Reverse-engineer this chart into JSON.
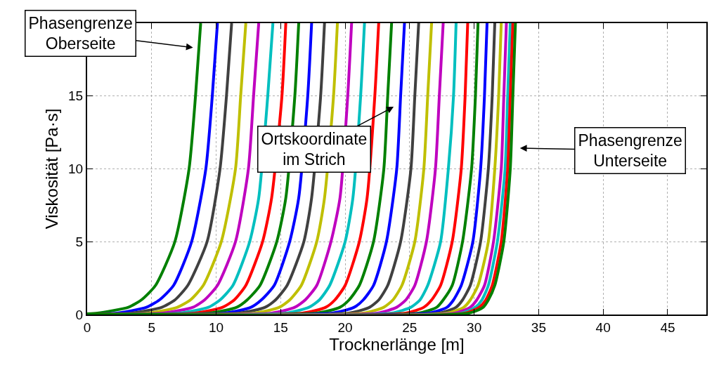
{
  "chart_data": {
    "type": "line",
    "xlabel": "Trocknerlänge [m]",
    "ylabel": "Viskosität [Pa·s]",
    "xlim": [
      0,
      48
    ],
    "xticks": [
      0,
      5,
      10,
      15,
      20,
      25,
      30,
      35,
      40,
      45
    ],
    "ylim": [
      0,
      20
    ],
    "yticks": [
      0,
      5,
      10,
      15
    ],
    "grid": true,
    "line_style": "solid",
    "annotations": [
      "Phasengrenze\nOberseite",
      "Ortskoordinate\nim Strich",
      "Phasengrenze\nUnterseite"
    ],
    "series": [
      {
        "color": "#008000",
        "x": [
          0,
          0.8,
          3.2,
          4.2,
          5.3,
          6.8,
          7.9,
          8.4,
          8.8
        ],
        "values": [
          0.05,
          0.1,
          0.5,
          1,
          2,
          5,
          10,
          15,
          20
        ]
      },
      {
        "color": "#0000ff",
        "x": [
          0,
          2.3,
          4.6,
          5.6,
          6.7,
          8.1,
          9.2,
          9.7,
          10.1
        ],
        "values": [
          0.05,
          0.1,
          0.5,
          1,
          2,
          5,
          10,
          15,
          20
        ]
      },
      {
        "color": "#404040",
        "x": [
          0,
          3.5,
          5.8,
          6.8,
          7.8,
          9.3,
          10.3,
          10.8,
          11.2
        ],
        "values": [
          0.05,
          0.1,
          0.5,
          1,
          2,
          5,
          10,
          15,
          20
        ]
      },
      {
        "color": "#bfbf00",
        "x": [
          0,
          4.8,
          7.0,
          8.0,
          9.0,
          10.4,
          11.5,
          11.9,
          12.3
        ],
        "values": [
          0.05,
          0.1,
          0.5,
          1,
          2,
          5,
          10,
          15,
          20
        ]
      },
      {
        "color": "#bf00bf",
        "x": [
          0,
          5.9,
          8.2,
          9.1,
          10.1,
          11.5,
          12.5,
          12.9,
          13.3
        ],
        "values": [
          0.05,
          0.1,
          0.5,
          1,
          2,
          5,
          10,
          15,
          20
        ]
      },
      {
        "color": "#00bfbf",
        "x": [
          0,
          7.2,
          9.4,
          10.3,
          11.3,
          12.6,
          13.3,
          14.0,
          14.4
        ],
        "values": [
          0.05,
          0.1,
          0.5,
          1,
          2,
          5,
          8,
          15,
          20
        ]
      },
      {
        "color": "#ff0000",
        "x": [
          0,
          8.4,
          10.5,
          11.4,
          12.3,
          13.6,
          14.3,
          15.1,
          15.4
        ],
        "values": [
          0.05,
          0.1,
          0.5,
          1,
          2,
          5,
          8,
          15,
          20
        ]
      },
      {
        "color": "#008000",
        "x": [
          0,
          9.5,
          11.6,
          12.4,
          13.4,
          14.7,
          15.4,
          16.1,
          16.4
        ],
        "values": [
          0.05,
          0.1,
          0.5,
          1,
          2,
          5,
          8,
          15,
          20
        ]
      },
      {
        "color": "#0000ff",
        "x": [
          0,
          10.7,
          12.7,
          13.5,
          14.5,
          15.7,
          16.4,
          17.1,
          17.4
        ],
        "values": [
          0.05,
          0.1,
          0.5,
          1,
          2,
          5,
          8,
          15,
          20
        ]
      },
      {
        "color": "#404040",
        "x": [
          0,
          11.8,
          13.8,
          14.6,
          15.5,
          16.8,
          17.4,
          18.1,
          18.4
        ],
        "values": [
          0.05,
          0.1,
          0.5,
          1,
          2,
          5,
          8,
          15,
          20
        ]
      },
      {
        "color": "#bfbf00",
        "x": [
          0,
          13.0,
          14.9,
          15.7,
          16.6,
          17.8,
          18.4,
          19.1,
          19.4
        ],
        "values": [
          0.05,
          0.1,
          0.5,
          1,
          2,
          5,
          8,
          15,
          20
        ]
      },
      {
        "color": "#bf00bf",
        "x": [
          0,
          14.3,
          16.1,
          16.9,
          17.8,
          18.9,
          19.6,
          20.2,
          20.5
        ],
        "values": [
          0.05,
          0.1,
          0.5,
          1,
          2,
          5,
          8,
          15,
          20
        ]
      },
      {
        "color": "#00bfbf",
        "x": [
          0,
          15.4,
          17.2,
          18.0,
          18.8,
          20.0,
          20.6,
          21.2,
          21.5
        ],
        "values": [
          0.05,
          0.1,
          0.5,
          1,
          2,
          5,
          8,
          15,
          20
        ]
      },
      {
        "color": "#ff0000",
        "x": [
          0,
          16.7,
          18.5,
          19.2,
          20.0,
          21.1,
          21.7,
          22.3,
          22.6
        ],
        "values": [
          0.05,
          0.1,
          0.5,
          1,
          2,
          5,
          8,
          15,
          20
        ]
      },
      {
        "color": "#008000",
        "x": [
          0,
          17.8,
          19.6,
          20.3,
          21.1,
          22.2,
          23.0,
          23.3,
          23.6
        ],
        "values": [
          0.05,
          0.1,
          0.5,
          1,
          2,
          5,
          10,
          15,
          20
        ]
      },
      {
        "color": "#0000ff",
        "x": [
          0,
          19.0,
          20.7,
          21.4,
          22.2,
          23.2,
          24.0,
          24.3,
          24.6
        ],
        "values": [
          0.05,
          0.1,
          0.5,
          1,
          2,
          5,
          10,
          15,
          20
        ]
      },
      {
        "color": "#404040",
        "x": [
          0,
          20.3,
          21.9,
          22.6,
          23.3,
          24.3,
          25.1,
          25.4,
          25.7
        ],
        "values": [
          0.05,
          0.1,
          0.5,
          1,
          2,
          5,
          10,
          15,
          20
        ]
      },
      {
        "color": "#bfbf00",
        "x": [
          0,
          21.4,
          23.0,
          23.7,
          24.4,
          25.4,
          26.1,
          26.4,
          26.7
        ],
        "values": [
          0.05,
          0.1,
          0.5,
          1,
          2,
          5,
          10,
          15,
          20
        ]
      },
      {
        "color": "#bf00bf",
        "x": [
          0,
          22.5,
          24.0,
          24.7,
          25.4,
          26.3,
          27.0,
          27.3,
          27.6
        ],
        "values": [
          0.05,
          0.1,
          0.5,
          1,
          2,
          5,
          10,
          15,
          20
        ]
      },
      {
        "color": "#00bfbf",
        "x": [
          0,
          23.6,
          25.1,
          25.8,
          26.4,
          27.4,
          28.0,
          28.4,
          28.6
        ],
        "values": [
          0.05,
          0.1,
          0.5,
          1,
          2,
          5,
          10,
          15,
          20
        ]
      },
      {
        "color": "#ff0000",
        "x": [
          0,
          24.7,
          26.1,
          26.7,
          27.4,
          28.3,
          29.0,
          29.3,
          29.5
        ],
        "values": [
          0.05,
          0.1,
          0.5,
          1,
          2,
          5,
          10,
          15,
          20
        ]
      },
      {
        "color": "#008000",
        "x": [
          0,
          25.7,
          27.1,
          27.6,
          28.3,
          29.1,
          29.8,
          30.1,
          30.3
        ],
        "values": [
          0.05,
          0.1,
          0.5,
          1,
          2,
          5,
          10,
          15,
          20
        ]
      },
      {
        "color": "#0000ff",
        "x": [
          0,
          26.5,
          27.9,
          28.4,
          29.0,
          29.9,
          30.5,
          30.8,
          31.0
        ],
        "values": [
          0.05,
          0.1,
          0.5,
          1,
          2,
          5,
          10,
          15,
          20
        ]
      },
      {
        "color": "#404040",
        "x": [
          0,
          27.3,
          28.6,
          29.1,
          29.7,
          30.5,
          31.1,
          31.4,
          31.6
        ],
        "values": [
          0.05,
          0.1,
          0.5,
          1,
          2,
          5,
          10,
          15,
          20
        ]
      },
      {
        "color": "#bfbf00",
        "x": [
          0,
          27.9,
          29.2,
          29.7,
          30.3,
          31.1,
          31.6,
          31.9,
          32.1
        ],
        "values": [
          0.05,
          0.1,
          0.5,
          1,
          2,
          5,
          10,
          15,
          20
        ]
      },
      {
        "color": "#bf00bf",
        "x": [
          0,
          28.5,
          29.7,
          30.2,
          30.8,
          31.5,
          32.1,
          32.3,
          32.5
        ],
        "values": [
          0.05,
          0.1,
          0.5,
          1,
          2,
          5,
          10,
          15,
          20
        ]
      },
      {
        "color": "#00bfbf",
        "x": [
          0,
          29.0,
          30.1,
          30.6,
          31.1,
          31.8,
          32.4,
          32.6,
          32.8
        ],
        "values": [
          0.05,
          0.1,
          0.5,
          1,
          2,
          5,
          10,
          15,
          20
        ]
      },
      {
        "color": "#ff0000",
        "x": [
          0,
          29.3,
          30.4,
          30.9,
          31.4,
          32.1,
          32.6,
          32.8,
          33.0
        ],
        "values": [
          0.05,
          0.1,
          0.5,
          1,
          2,
          5,
          10,
          15,
          20
        ]
      },
      {
        "color": "#008000",
        "x": [
          0,
          29.6,
          30.7,
          31.1,
          31.6,
          32.3,
          32.8,
          33.0,
          33.2
        ],
        "values": [
          0.05,
          0.1,
          0.5,
          1,
          2,
          5,
          10,
          15,
          20
        ]
      }
    ]
  }
}
